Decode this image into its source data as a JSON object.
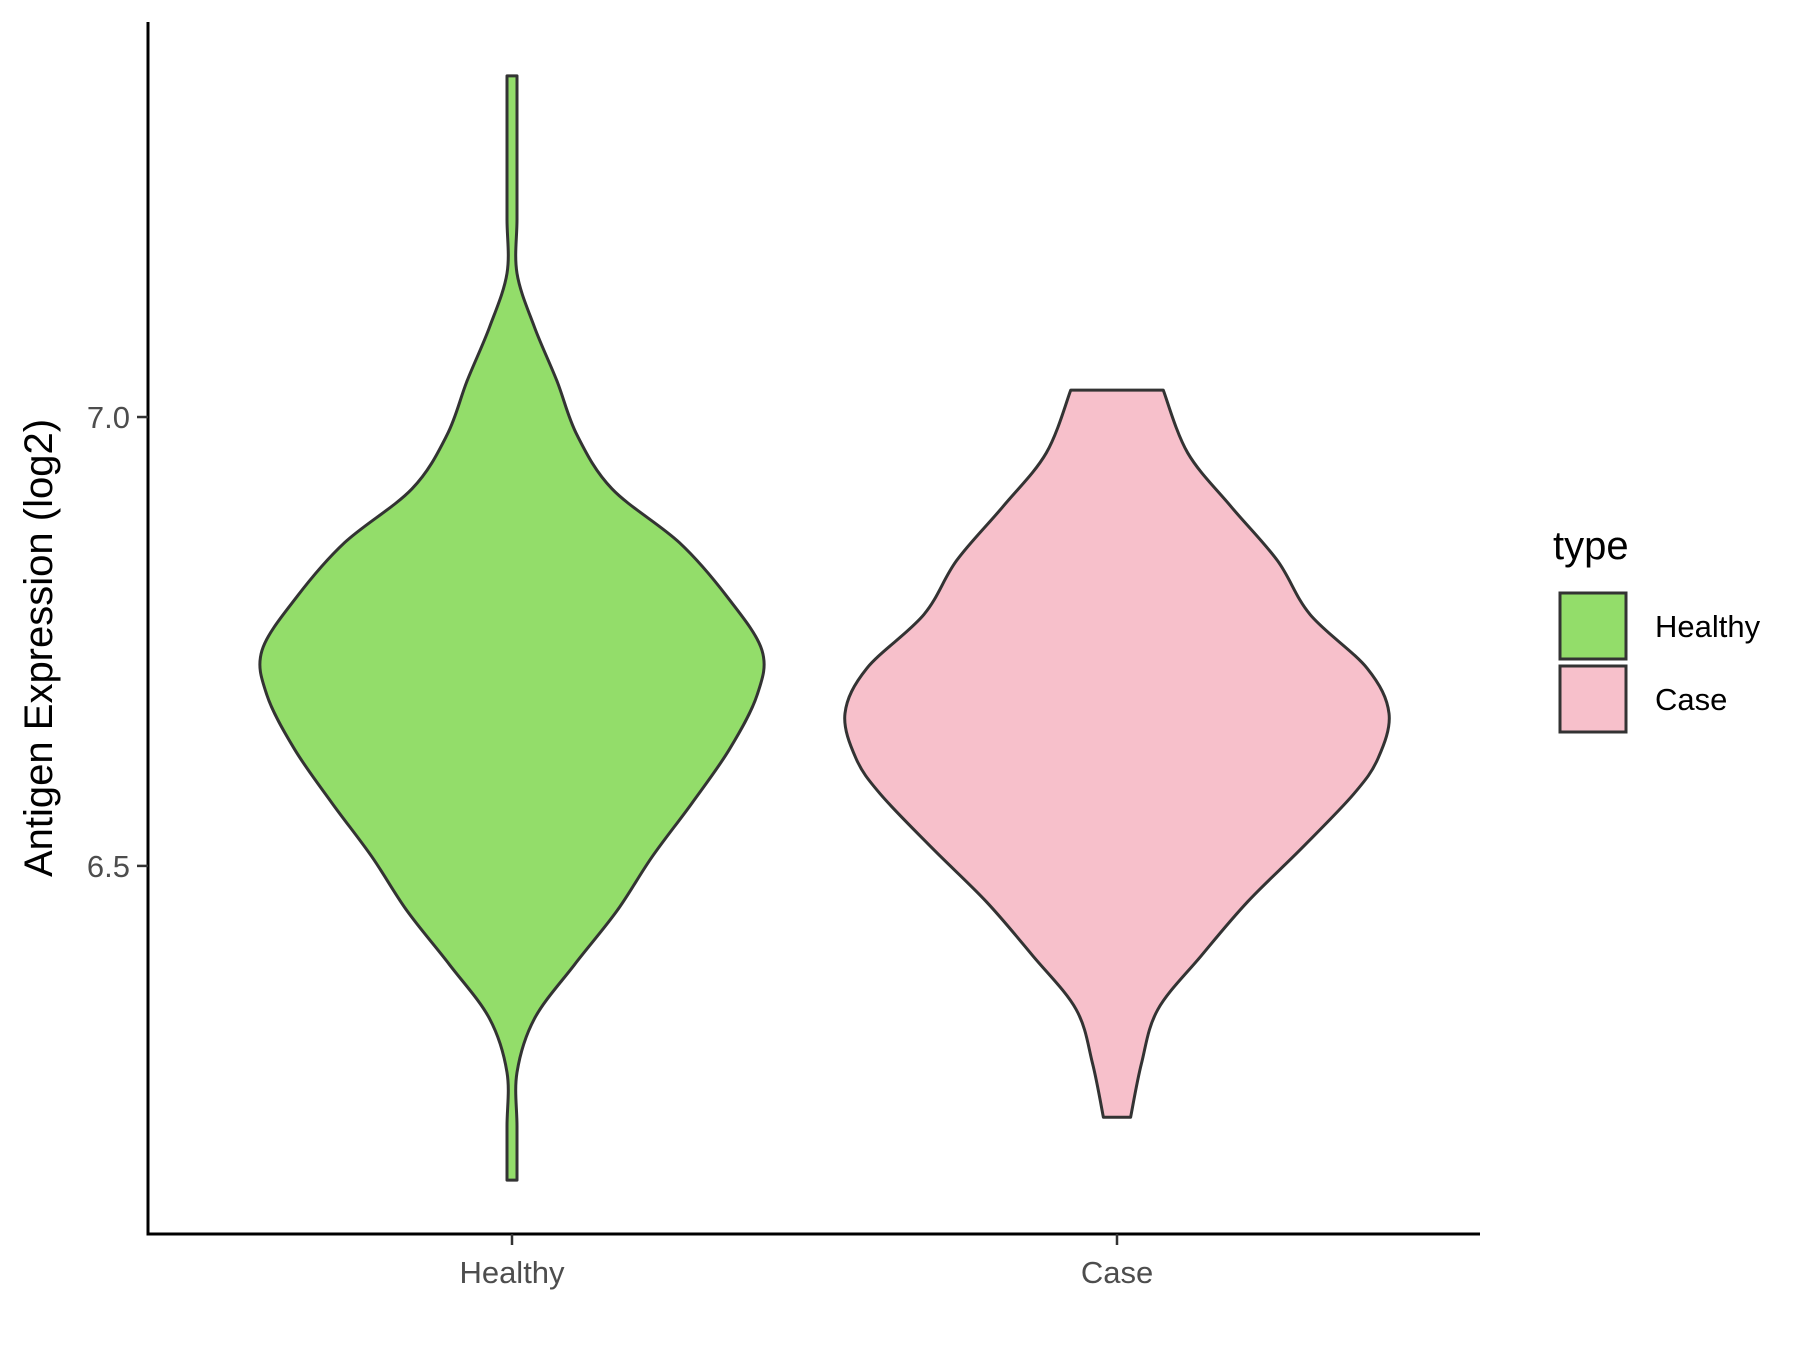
{
  "chart_data": {
    "type": "violin",
    "title": "",
    "xlabel": "",
    "ylabel": "Antigen Expression (log2)",
    "ylim": [
      6.09,
      7.44
    ],
    "yticks": [
      6.5,
      7.0
    ],
    "ytick_labels": [
      "6.5",
      "7.0"
    ],
    "categories": [
      "Healthy",
      "Case"
    ],
    "legend": {
      "title": "type",
      "position": "right",
      "entries": [
        "Healthy",
        "Case"
      ]
    },
    "grid": false,
    "series": [
      {
        "name": "Healthy",
        "color": "#93DD6A",
        "y_min": 6.15,
        "y_max": 7.38,
        "density_profile": [
          [
            6.15,
            0.02
          ],
          [
            6.21,
            0.01
          ],
          [
            6.27,
            0.02
          ],
          [
            6.33,
            0.09
          ],
          [
            6.39,
            0.25
          ],
          [
            6.45,
            0.42
          ],
          [
            6.51,
            0.56
          ],
          [
            6.57,
            0.72
          ],
          [
            6.63,
            0.87
          ],
          [
            6.69,
            0.98
          ],
          [
            6.74,
            1.0
          ],
          [
            6.8,
            0.86
          ],
          [
            6.86,
            0.67
          ],
          [
            6.92,
            0.4
          ],
          [
            6.98,
            0.26
          ],
          [
            7.04,
            0.18
          ],
          [
            7.1,
            0.09
          ],
          [
            7.16,
            0.02
          ],
          [
            7.22,
            0.01
          ],
          [
            7.28,
            0.01
          ],
          [
            7.38,
            0.01
          ]
        ]
      },
      {
        "name": "Case",
        "color": "#F7C0CB",
        "y_min": 6.22,
        "y_max": 7.03,
        "density_profile": [
          [
            6.22,
            0.05
          ],
          [
            6.28,
            0.09
          ],
          [
            6.34,
            0.15
          ],
          [
            6.4,
            0.31
          ],
          [
            6.46,
            0.48
          ],
          [
            6.52,
            0.68
          ],
          [
            6.58,
            0.87
          ],
          [
            6.62,
            0.96
          ],
          [
            6.67,
            1.0
          ],
          [
            6.72,
            0.92
          ],
          [
            6.78,
            0.71
          ],
          [
            6.84,
            0.59
          ],
          [
            6.9,
            0.42
          ],
          [
            6.96,
            0.26
          ],
          [
            7.03,
            0.17
          ]
        ]
      }
    ]
  }
}
